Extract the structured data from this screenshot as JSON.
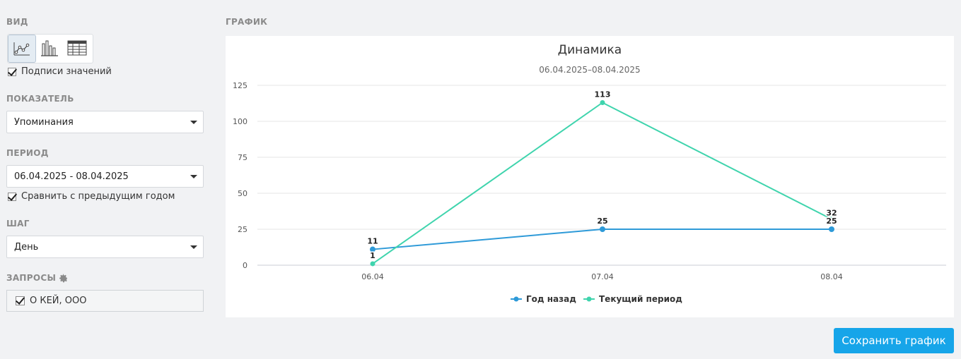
{
  "left_panel": {
    "view_title": "ВИД",
    "view_icons": [
      "line-chart-icon",
      "bar-chart-icon",
      "table-icon"
    ],
    "show_values_label": "Подписи значений",
    "show_values_checked": true,
    "metric_title": "ПОКАЗАТЕЛЬ",
    "metric_value": "Упоминания",
    "period_title": "ПЕРИОД",
    "period_value": "06.04.2025 - 08.04.2025",
    "compare_label": "Сравнить с предыдущим годом",
    "compare_checked": true,
    "step_title": "ШАГ",
    "step_value": "День",
    "queries_title": "ЗАПРОСЫ",
    "query_item": "О КЕЙ, ООО",
    "query_checked": true
  },
  "chart_section_title": "ГРАФИК",
  "save_button": "Сохранить график",
  "colors": {
    "accent": "#16a5e9",
    "series_year_ago": "#2e9ad8",
    "series_current": "#3fd4ad"
  },
  "chart_data": {
    "type": "line",
    "title": "Динамика",
    "subtitle": "06.04.2025–08.04.2025",
    "categories": [
      "06.04",
      "07.04",
      "08.04"
    ],
    "yticks": [
      0,
      25,
      50,
      75,
      100,
      125
    ],
    "ylim": [
      0,
      125
    ],
    "grid": true,
    "legend_position": "bottom-center",
    "series": [
      {
        "name": "Год назад",
        "values": [
          11,
          25,
          25
        ],
        "color": "#2e9ad8"
      },
      {
        "name": "Текущий период",
        "values": [
          1,
          113,
          32
        ],
        "color": "#3fd4ad"
      }
    ]
  }
}
